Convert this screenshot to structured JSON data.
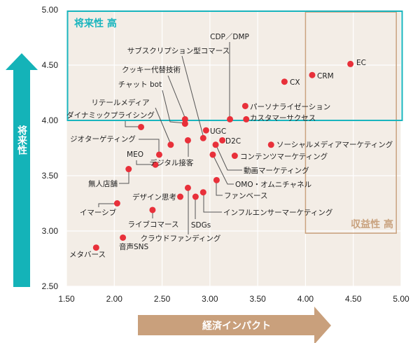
{
  "chart_data": {
    "type": "scatter",
    "xlabel": "経済インパクト",
    "ylabel": "将来性",
    "xlim": [
      1.5,
      5.0
    ],
    "ylim": [
      2.5,
      5.0
    ],
    "xticks": [
      "1.50",
      "2.00",
      "2.50",
      "3.00",
      "3.50",
      "4.00",
      "4.50",
      "5.00"
    ],
    "yticks": [
      "2.50",
      "3.00",
      "3.50",
      "4.00",
      "4.50",
      "5.00"
    ],
    "grid": true,
    "regions": [
      {
        "label": "将来性 高",
        "x": [
          1.5,
          5.0
        ],
        "y": [
          4.0,
          5.0
        ],
        "color": "#19b5be"
      },
      {
        "label": "収益性 高",
        "x": [
          4.0,
          4.95
        ],
        "y": [
          2.98,
          4.98
        ],
        "color": "#c9a27e"
      }
    ],
    "colors": {
      "point": "#e8303a",
      "background": "#f3ede6",
      "y_arrow": "#14b3b8",
      "x_arrow": "#c9a07c"
    },
    "points": [
      {
        "label": "EC",
        "x": 4.47,
        "y": 4.51
      },
      {
        "label": "CRM",
        "x": 4.07,
        "y": 4.41
      },
      {
        "label": "CX",
        "x": 3.78,
        "y": 4.35
      },
      {
        "label": "パーソナライゼーション",
        "x": 3.37,
        "y": 4.13
      },
      {
        "label": "カスタマーサクセス",
        "x": 3.38,
        "y": 4.01
      },
      {
        "label": "CDP／DMP",
        "x": 3.21,
        "y": 4.01
      },
      {
        "label": "サブスクリプション型コマース",
        "x": 2.93,
        "y": 3.84
      },
      {
        "label": "クッキー代替技術",
        "x": 2.74,
        "y": 4.01
      },
      {
        "label": "チャット bot",
        "x": 2.74,
        "y": 3.97
      },
      {
        "label": "リテールメディア",
        "x": 2.59,
        "y": 3.78
      },
      {
        "label": "ダイナミックプライシング",
        "x": 2.28,
        "y": 3.94
      },
      {
        "label": "UGC",
        "x": 2.96,
        "y": 3.91
      },
      {
        "label": "D2C",
        "x": 3.13,
        "y": 3.82
      },
      {
        "label": "動画マーケティング",
        "x": 3.06,
        "y": 3.78
      },
      {
        "label": "OMO・オムニチャネル",
        "x": 3.03,
        "y": 3.69
      },
      {
        "label": "ファンベース",
        "x": 3.07,
        "y": 3.46
      },
      {
        "label": "インフルエンサーマーケティング",
        "x": 2.93,
        "y": 3.35
      },
      {
        "label": "コンテンツマーケティング",
        "x": 3.26,
        "y": 3.68
      },
      {
        "label": "ソーシャルメディアマーケティング",
        "x": 3.64,
        "y": 3.78
      },
      {
        "label": "デジタル接客",
        "x": 2.77,
        "y": 3.82
      },
      {
        "label": "ジオターゲティング",
        "x": 2.47,
        "y": 3.69
      },
      {
        "label": "MEO",
        "x": 2.43,
        "y": 3.6
      },
      {
        "label": "無人店舗",
        "x": 2.15,
        "y": 3.56
      },
      {
        "label": "デザイン思考",
        "x": 2.69,
        "y": 3.31
      },
      {
        "label": "クラウドファンディング",
        "x": 2.77,
        "y": 3.39
      },
      {
        "label": "SDGs",
        "x": 2.85,
        "y": 3.31
      },
      {
        "label": "イマーシブ",
        "x": 2.03,
        "y": 3.25
      },
      {
        "label": "ライブコマース",
        "x": 2.4,
        "y": 3.19
      },
      {
        "label": "音声SNS",
        "x": 2.09,
        "y": 2.94
      },
      {
        "label": "メタバース",
        "x": 1.81,
        "y": 2.85
      }
    ]
  }
}
